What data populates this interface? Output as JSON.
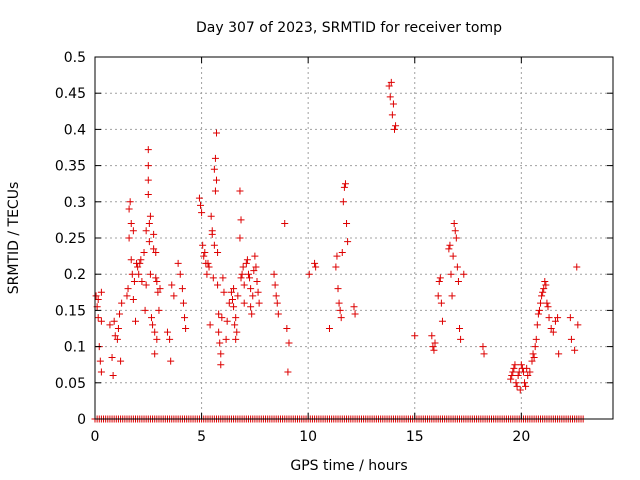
{
  "chart_data": {
    "type": "scatter",
    "title": "Day 307 of 2023, SRMTID for receiver tomp",
    "xlabel": "GPS time / hours",
    "ylabel": "SRMTID / TECUs",
    "xlim": [
      0,
      24.3
    ],
    "ylim": [
      0,
      0.5
    ],
    "x_ticks": [
      0,
      5,
      10,
      15,
      20
    ],
    "x_tick_labels": [
      "0",
      "5",
      "10",
      "15",
      "20"
    ],
    "y_ticks": [
      0,
      0.05,
      0.1,
      0.15,
      0.2,
      0.25,
      0.3,
      0.35,
      0.4,
      0.45,
      0.5
    ],
    "y_tick_labels": [
      "0",
      "0.05",
      "0.1",
      "0.15",
      "0.2",
      "0.25",
      "0.3",
      "0.35",
      "0.4",
      "0.45",
      "0.5"
    ],
    "grid": true,
    "marker": "+",
    "marker_color": "#dd0000",
    "zero_baseline": {
      "x_start": 0.0,
      "x_end": 22.9,
      "step": 0.1,
      "y": 0.0
    },
    "series": [
      {
        "name": "SRMTID",
        "points": [
          [
            0.05,
            0.17
          ],
          [
            0.1,
            0.155
          ],
          [
            0.15,
            0.14
          ],
          [
            0.15,
            0.165
          ],
          [
            0.2,
            0.1
          ],
          [
            0.25,
            0.08
          ],
          [
            0.3,
            0.065
          ],
          [
            0.3,
            0.175
          ],
          [
            0.3,
            0.135
          ],
          [
            0.7,
            0.13
          ],
          [
            0.8,
            0.085
          ],
          [
            0.85,
            0.06
          ],
          [
            0.9,
            0.135
          ],
          [
            0.95,
            0.115
          ],
          [
            1.05,
            0.11
          ],
          [
            1.1,
            0.125
          ],
          [
            1.15,
            0.145
          ],
          [
            1.2,
            0.08
          ],
          [
            1.25,
            0.16
          ],
          [
            1.5,
            0.17
          ],
          [
            1.55,
            0.18
          ],
          [
            1.6,
            0.29
          ],
          [
            1.6,
            0.25
          ],
          [
            1.65,
            0.3
          ],
          [
            1.7,
            0.27
          ],
          [
            1.7,
            0.22
          ],
          [
            1.75,
            0.2
          ],
          [
            1.8,
            0.165
          ],
          [
            1.8,
            0.26
          ],
          [
            1.85,
            0.19
          ],
          [
            1.9,
            0.135
          ],
          [
            1.95,
            0.215
          ],
          [
            2.0,
            0.21
          ],
          [
            2.05,
            0.2
          ],
          [
            2.1,
            0.215
          ],
          [
            2.15,
            0.22
          ],
          [
            2.2,
            0.19
          ],
          [
            2.3,
            0.23
          ],
          [
            2.35,
            0.15
          ],
          [
            2.4,
            0.185
          ],
          [
            2.4,
            0.26
          ],
          [
            2.5,
            0.33
          ],
          [
            2.5,
            0.35
          ],
          [
            2.5,
            0.372
          ],
          [
            2.5,
            0.31
          ],
          [
            2.55,
            0.27
          ],
          [
            2.55,
            0.245
          ],
          [
            2.6,
            0.28
          ],
          [
            2.6,
            0.2
          ],
          [
            2.65,
            0.14
          ],
          [
            2.7,
            0.13
          ],
          [
            2.75,
            0.255
          ],
          [
            2.75,
            0.235
          ],
          [
            2.8,
            0.12
          ],
          [
            2.8,
            0.09
          ],
          [
            2.85,
            0.23
          ],
          [
            2.85,
            0.195
          ],
          [
            2.9,
            0.19
          ],
          [
            2.9,
            0.11
          ],
          [
            2.95,
            0.175
          ],
          [
            3.0,
            0.15
          ],
          [
            3.05,
            0.18
          ],
          [
            3.4,
            0.12
          ],
          [
            3.5,
            0.11
          ],
          [
            3.55,
            0.08
          ],
          [
            3.6,
            0.185
          ],
          [
            3.7,
            0.17
          ],
          [
            3.9,
            0.215
          ],
          [
            4.0,
            0.2
          ],
          [
            4.1,
            0.18
          ],
          [
            4.15,
            0.16
          ],
          [
            4.2,
            0.14
          ],
          [
            4.25,
            0.125
          ],
          [
            4.9,
            0.305
          ],
          [
            4.95,
            0.295
          ],
          [
            5.0,
            0.285
          ],
          [
            5.05,
            0.24
          ],
          [
            5.1,
            0.225
          ],
          [
            5.15,
            0.23
          ],
          [
            5.2,
            0.215
          ],
          [
            5.25,
            0.2
          ],
          [
            5.3,
            0.215
          ],
          [
            5.35,
            0.21
          ],
          [
            5.4,
            0.13
          ],
          [
            5.45,
            0.28
          ],
          [
            5.5,
            0.255
          ],
          [
            5.5,
            0.26
          ],
          [
            5.55,
            0.195
          ],
          [
            5.6,
            0.24
          ],
          [
            5.6,
            0.345
          ],
          [
            5.65,
            0.36
          ],
          [
            5.65,
            0.315
          ],
          [
            5.7,
            0.395
          ],
          [
            5.7,
            0.33
          ],
          [
            5.75,
            0.23
          ],
          [
            5.75,
            0.185
          ],
          [
            5.8,
            0.145
          ],
          [
            5.8,
            0.12
          ],
          [
            5.85,
            0.105
          ],
          [
            5.9,
            0.09
          ],
          [
            5.9,
            0.075
          ],
          [
            5.95,
            0.14
          ],
          [
            6.0,
            0.195
          ],
          [
            6.05,
            0.175
          ],
          [
            6.15,
            0.11
          ],
          [
            6.2,
            0.135
          ],
          [
            6.3,
            0.16
          ],
          [
            6.4,
            0.175
          ],
          [
            6.45,
            0.165
          ],
          [
            6.5,
            0.18
          ],
          [
            6.5,
            0.155
          ],
          [
            6.55,
            0.13
          ],
          [
            6.6,
            0.14
          ],
          [
            6.6,
            0.11
          ],
          [
            6.65,
            0.12
          ],
          [
            6.7,
            0.17
          ],
          [
            6.8,
            0.315
          ],
          [
            6.8,
            0.25
          ],
          [
            6.85,
            0.275
          ],
          [
            6.85,
            0.195
          ],
          [
            6.9,
            0.2
          ],
          [
            6.95,
            0.21
          ],
          [
            7.0,
            0.185
          ],
          [
            7.0,
            0.16
          ],
          [
            7.1,
            0.215
          ],
          [
            7.15,
            0.22
          ],
          [
            7.2,
            0.2
          ],
          [
            7.25,
            0.195
          ],
          [
            7.3,
            0.18
          ],
          [
            7.3,
            0.155
          ],
          [
            7.35,
            0.145
          ],
          [
            7.4,
            0.17
          ],
          [
            7.45,
            0.205
          ],
          [
            7.5,
            0.225
          ],
          [
            7.55,
            0.21
          ],
          [
            7.6,
            0.19
          ],
          [
            7.65,
            0.175
          ],
          [
            7.7,
            0.16
          ],
          [
            8.4,
            0.2
          ],
          [
            8.45,
            0.185
          ],
          [
            8.5,
            0.17
          ],
          [
            8.55,
            0.16
          ],
          [
            8.6,
            0.145
          ],
          [
            8.9,
            0.27
          ],
          [
            9.0,
            0.125
          ],
          [
            9.05,
            0.065
          ],
          [
            9.1,
            0.105
          ],
          [
            10.05,
            0.2
          ],
          [
            10.3,
            0.215
          ],
          [
            10.35,
            0.21
          ],
          [
            11.0,
            0.125
          ],
          [
            11.3,
            0.21
          ],
          [
            11.35,
            0.225
          ],
          [
            11.4,
            0.18
          ],
          [
            11.45,
            0.16
          ],
          [
            11.5,
            0.15
          ],
          [
            11.55,
            0.14
          ],
          [
            11.6,
            0.23
          ],
          [
            11.65,
            0.3
          ],
          [
            11.7,
            0.32
          ],
          [
            11.75,
            0.325
          ],
          [
            11.8,
            0.27
          ],
          [
            11.85,
            0.245
          ],
          [
            12.15,
            0.155
          ],
          [
            12.2,
            0.145
          ],
          [
            13.8,
            0.46
          ],
          [
            13.85,
            0.445
          ],
          [
            13.9,
            0.465
          ],
          [
            13.95,
            0.42
          ],
          [
            14.0,
            0.435
          ],
          [
            14.05,
            0.4
          ],
          [
            14.1,
            0.405
          ],
          [
            15.0,
            0.115
          ],
          [
            15.8,
            0.115
          ],
          [
            15.85,
            0.1
          ],
          [
            15.9,
            0.095
          ],
          [
            15.95,
            0.105
          ],
          [
            16.1,
            0.17
          ],
          [
            16.15,
            0.19
          ],
          [
            16.2,
            0.195
          ],
          [
            16.25,
            0.16
          ],
          [
            16.3,
            0.135
          ],
          [
            16.6,
            0.235
          ],
          [
            16.65,
            0.24
          ],
          [
            16.7,
            0.2
          ],
          [
            16.75,
            0.17
          ],
          [
            16.8,
            0.225
          ],
          [
            16.85,
            0.27
          ],
          [
            16.9,
            0.26
          ],
          [
            16.95,
            0.25
          ],
          [
            17.0,
            0.21
          ],
          [
            17.05,
            0.19
          ],
          [
            17.1,
            0.125
          ],
          [
            17.15,
            0.11
          ],
          [
            17.3,
            0.2
          ],
          [
            18.2,
            0.1
          ],
          [
            18.25,
            0.09
          ],
          [
            19.5,
            0.055
          ],
          [
            19.55,
            0.06
          ],
          [
            19.6,
            0.065
          ],
          [
            19.65,
            0.07
          ],
          [
            19.7,
            0.075
          ],
          [
            19.75,
            0.05
          ],
          [
            19.8,
            0.045
          ],
          [
            19.85,
            0.06
          ],
          [
            19.9,
            0.065
          ],
          [
            19.95,
            0.04
          ],
          [
            20.0,
            0.075
          ],
          [
            20.05,
            0.07
          ],
          [
            20.1,
            0.065
          ],
          [
            20.15,
            0.05
          ],
          [
            20.2,
            0.045
          ],
          [
            20.25,
            0.07
          ],
          [
            20.3,
            0.06
          ],
          [
            20.4,
            0.065
          ],
          [
            20.5,
            0.08
          ],
          [
            20.55,
            0.09
          ],
          [
            20.6,
            0.085
          ],
          [
            20.65,
            0.1
          ],
          [
            20.7,
            0.11
          ],
          [
            20.75,
            0.13
          ],
          [
            20.8,
            0.145
          ],
          [
            20.85,
            0.15
          ],
          [
            20.9,
            0.16
          ],
          [
            20.95,
            0.17
          ],
          [
            21.0,
            0.175
          ],
          [
            21.05,
            0.18
          ],
          [
            21.1,
            0.19
          ],
          [
            21.15,
            0.185
          ],
          [
            21.2,
            0.16
          ],
          [
            21.25,
            0.155
          ],
          [
            21.3,
            0.14
          ],
          [
            21.4,
            0.125
          ],
          [
            21.5,
            0.12
          ],
          [
            21.6,
            0.135
          ],
          [
            21.7,
            0.14
          ],
          [
            21.75,
            0.09
          ],
          [
            22.3,
            0.14
          ],
          [
            22.35,
            0.11
          ],
          [
            22.5,
            0.095
          ],
          [
            22.6,
            0.21
          ],
          [
            22.65,
            0.13
          ]
        ]
      }
    ]
  }
}
